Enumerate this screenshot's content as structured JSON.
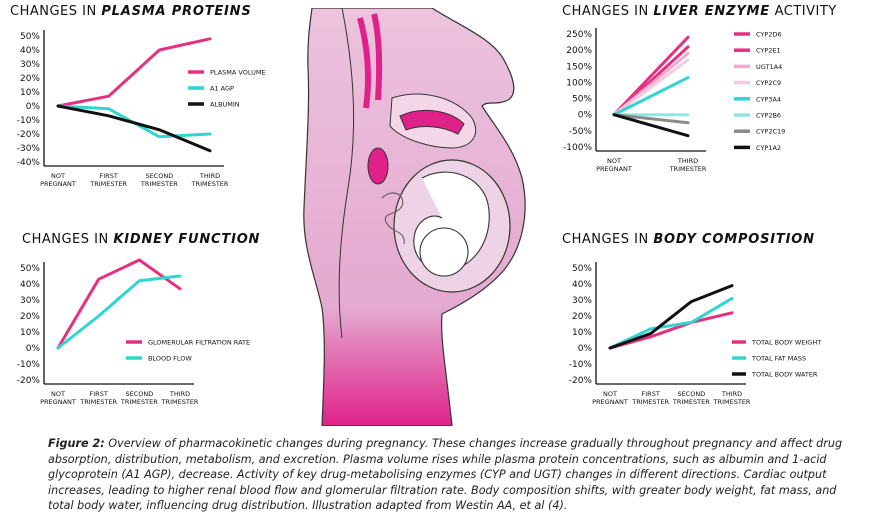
{
  "colors": {
    "magenta": "#e6307f",
    "cyan": "#2fd6d0",
    "black": "#111111",
    "pink_light": "#f1a9cf",
    "pink_pale": "#f6c9e1",
    "cyan_light": "#8ee7e2",
    "gray": "#8a8a8a",
    "body_fill": "#e8b9d8"
  },
  "panels": {
    "plasma": {
      "prefix": "CHANGES IN ",
      "emph": "PLASMA PROTEINS",
      "suffix": ""
    },
    "liver": {
      "prefix": "CHANGES IN ",
      "emph": "LIVER ENZYME",
      "suffix": " ACTIVITY"
    },
    "kidney": {
      "prefix": "CHANGES IN ",
      "emph": "KIDNEY FUNCTION",
      "suffix": ""
    },
    "body": {
      "prefix": "CHANGES IN ",
      "emph": "BODY COMPOSITION",
      "suffix": ""
    }
  },
  "chart_data": [
    {
      "id": "plasma",
      "type": "line",
      "title": "CHANGES IN PLASMA PROTEINS",
      "categories": [
        "NOT PREGNANT",
        "FIRST TRIMESTER",
        "SECOND TRIMESTER",
        "THIRD TRIMESTER"
      ],
      "yticks": [
        "50%",
        "40%",
        "30%",
        "20%",
        "10%",
        "0%",
        "-10%",
        "-20%",
        "-30%",
        "-40%"
      ],
      "ylim": [
        -40,
        50
      ],
      "grid": false,
      "legend_position": "right",
      "series": [
        {
          "name": "PLASMA VOLUME",
          "color": "#e6307f",
          "values": [
            0,
            7,
            40,
            48
          ]
        },
        {
          "name": "A1 AGP",
          "color": "#2fd6d0",
          "values": [
            0,
            -2,
            -22,
            -20
          ]
        },
        {
          "name": "ALBUMIN",
          "color": "#111111",
          "values": [
            0,
            -7,
            -17,
            -32
          ]
        }
      ]
    },
    {
      "id": "liver",
      "type": "line",
      "title": "CHANGES IN LIVER ENZYME ACTIVITY",
      "categories": [
        "NOT PREGNANT",
        "THIRD TRIMESTER"
      ],
      "yticks": [
        "250%",
        "200%",
        "150%",
        "100%",
        "50%",
        "0%",
        "-50%",
        "-100%"
      ],
      "ylim": [
        -100,
        250
      ],
      "grid": false,
      "legend_position": "right",
      "series": [
        {
          "name": "CYP2D6",
          "color": "#e6307f",
          "values": [
            0,
            240
          ]
        },
        {
          "name": "CYP2E1",
          "color": "#e6307f",
          "values": [
            0,
            210
          ]
        },
        {
          "name": "UGT1A4",
          "color": "#f1a9cf",
          "values": [
            0,
            190
          ]
        },
        {
          "name": "CYP2C9",
          "color": "#f6c9e1",
          "values": [
            0,
            170
          ]
        },
        {
          "name": "CYP3A4",
          "color": "#2fd6d0",
          "values": [
            0,
            115
          ]
        },
        {
          "name": "CYP2B6",
          "color": "#8ee7e2",
          "values": [
            0,
            0
          ]
        },
        {
          "name": "CYP2C19",
          "color": "#8a8a8a",
          "values": [
            0,
            -25
          ]
        },
        {
          "name": "CYP1A2",
          "color": "#111111",
          "values": [
            0,
            -65
          ]
        }
      ]
    },
    {
      "id": "kidney",
      "type": "line",
      "title": "CHANGES IN KIDNEY FUNCTION",
      "categories": [
        "NOT PREGNANT",
        "FIRST TRIMESTER",
        "SECOND TRIMESTER",
        "THIRD TRIMESTER"
      ],
      "yticks": [
        "50%",
        "40%",
        "30%",
        "20%",
        "10%",
        "0%",
        "-10%",
        "-20%"
      ],
      "ylim": [
        -20,
        50
      ],
      "grid": false,
      "legend_position": "right",
      "series": [
        {
          "name": "GLOMERULAR FILTRATION RATE",
          "color": "#e6307f",
          "values": [
            0,
            43,
            55,
            37
          ]
        },
        {
          "name": "BLOOD FLOW",
          "color": "#2fd6d0",
          "values": [
            0,
            20,
            42,
            45
          ]
        }
      ]
    },
    {
      "id": "body",
      "type": "line",
      "title": "CHANGES IN BODY COMPOSITION",
      "categories": [
        "NOT PREGNANT",
        "FIRST TRIMESTER",
        "SECOND TRIMESTER",
        "THIRD TRIMESTER"
      ],
      "yticks": [
        "50%",
        "40%",
        "30%",
        "20%",
        "10%",
        "0%",
        "-10%",
        "-20%"
      ],
      "ylim": [
        -20,
        50
      ],
      "grid": false,
      "legend_position": "right",
      "series": [
        {
          "name": "TOTAL BODY WEIGHT",
          "color": "#e6307f",
          "values": [
            0,
            7,
            16,
            22
          ]
        },
        {
          "name": "TOTAL FAT MASS",
          "color": "#2fd6d0",
          "values": [
            0,
            12,
            16,
            31
          ]
        },
        {
          "name": "TOTAL BODY WATER",
          "color": "#111111",
          "values": [
            0,
            9,
            29,
            39
          ]
        }
      ]
    }
  ],
  "caption": {
    "label": "Figure 2:",
    "text": " Overview of pharmacokinetic changes during pregnancy. These changes increase gradually throughout pregnancy and affect drug absorption, distribution, metabolism, and excretion. Plasma volume rises while plasma protein concentrations, such as albumin and 1-acid glycoprotein (A1 AGP), decrease. Activity of key drug-metabolising enzymes (CYP and UGT) changes in different directions. Cardiac output increases, leading to higher renal blood flow and glomerular filtration rate. Body composition shifts, with greater body weight, fat mass, and total body water, influencing drug distribution. Illustration adapted from Westin AA, et al (4)."
  }
}
